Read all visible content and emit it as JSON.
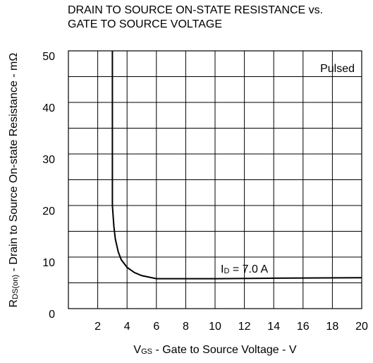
{
  "chart_data": {
    "type": "line",
    "title": [
      "DRAIN TO SOURCE ON-STATE RESISTANCE vs.",
      "GATE TO SOURCE VOLTAGE"
    ],
    "xlabel": {
      "symbol": "V",
      "subscript": "GS",
      "text": " -  Gate to Source Voltage  - V"
    },
    "ylabel": {
      "symbol": "R",
      "subscript": "DS(on)",
      "text": " -  Drain to Source On-state Resistance - mΩ"
    },
    "annotations": [
      {
        "text": "Pulsed"
      },
      {
        "symbol": "I",
        "subscript": "D",
        "text": " = 7.0 A"
      }
    ],
    "xlim": [
      0,
      20
    ],
    "xticks": [
      2,
      4,
      6,
      8,
      10,
      12,
      14,
      16,
      18,
      20
    ],
    "ylim": [
      0,
      50
    ],
    "yticks": [
      0,
      10,
      20,
      30,
      40,
      50
    ],
    "yminor": [
      5,
      15,
      25,
      35,
      45
    ],
    "grid": true,
    "series": [
      {
        "color": "#000000",
        "x": [
          3,
          3,
          3.1,
          3.2,
          3.4,
          3.6,
          4,
          4.5,
          5,
          6,
          8,
          10,
          14,
          20
        ],
        "values": [
          50,
          20,
          16,
          13.5,
          11,
          9.5,
          8,
          7,
          6.4,
          5.8,
          5.8,
          5.8,
          5.9,
          6.0
        ]
      }
    ]
  }
}
